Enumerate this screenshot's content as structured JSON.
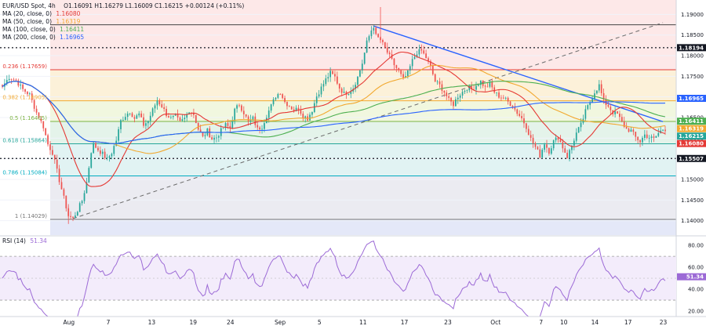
{
  "header": {
    "symbol": "EUR/USD Spot, 4h",
    "ohlc": "O1.16091  H1.16279  L1.16009  C1.16215  +0.00124 (+0.11%)"
  },
  "legend": [
    {
      "label": "MA (20, close, 0)",
      "value": "1.16080",
      "color": "#e53935"
    },
    {
      "label": "MA (50, close, 0)",
      "value": "1.16319",
      "color": "#f2a82f"
    },
    {
      "label": "MA (100, close, 0)",
      "value": "1.16411",
      "color": "#4caf50"
    },
    {
      "label": "MA (200, close, 0)",
      "value": "1.16965",
      "color": "#2962ff"
    }
  ],
  "rsi_legend": {
    "label": "RSI (14)",
    "value": "51.34"
  },
  "colors": {
    "up": "#26a69a",
    "down": "#ef5350",
    "ma20": "#e53935",
    "ma50": "#f2a82f",
    "ma100": "#4caf50",
    "ma200": "#2962ff",
    "rsi": "#9c6ad6",
    "trend": "#2962ff",
    "dashed": "#6b6b6b"
  },
  "chart_data": {
    "type": "candlestick",
    "title": "EUR/USD Spot, 4h",
    "ylim": [
      1.1365,
      1.1935
    ],
    "y_ticks": [
      "1.19000",
      "1.18500",
      "1.18000",
      "1.17500",
      "1.17000",
      "1.16500",
      "1.16000",
      "1.15500",
      "1.15000",
      "1.14500",
      "1.14000"
    ],
    "x_ticks": [
      "Aug",
      "7",
      "13",
      "19",
      "24",
      "Sep",
      "5",
      "11",
      "17",
      "23",
      "Oct",
      "7",
      "10",
      "14",
      "17",
      "23"
    ],
    "fib_levels": [
      {
        "label": "0.236 (1.17659)",
        "value": 1.17659
      },
      {
        "label": "0.382 (1.16905)",
        "value": 1.16905
      },
      {
        "label": "0.5 (1.16405)",
        "value": 1.16405
      },
      {
        "label": "0.618 (1.15864)",
        "value": 1.15864
      },
      {
        "label": "0.786 (1.15084)",
        "value": 1.15084
      },
      {
        "label": "1 (1.14029)",
        "value": 1.14029
      }
    ],
    "horizontal_levels": [
      {
        "label": "1.18194",
        "value": 1.18194,
        "style": "dotted"
      },
      {
        "label": "1.15507",
        "value": 1.15507,
        "style": "dotted"
      }
    ],
    "price_labels": [
      {
        "label": "1.16965",
        "value": 1.16965,
        "series": "MA 200"
      },
      {
        "label": "1.16411",
        "value": 1.16411,
        "series": "MA 100"
      },
      {
        "label": "1.16319",
        "value": 1.16319,
        "series": "MA 50"
      },
      {
        "label": "1.16215",
        "value": 1.16215,
        "series": "Price"
      },
      {
        "label": "1.16080",
        "value": 1.1608,
        "series": "MA 20"
      }
    ],
    "price_path": [
      [
        0,
        1.1725
      ],
      [
        3,
        1.1748
      ],
      [
        6,
        1.174
      ],
      [
        9,
        1.1718
      ],
      [
        12,
        1.1705
      ],
      [
        15,
        1.1662
      ],
      [
        18,
        1.1628
      ],
      [
        20,
        1.1585
      ],
      [
        22,
        1.1565
      ],
      [
        25,
        1.1498
      ],
      [
        27,
        1.1455
      ],
      [
        29,
        1.1412
      ],
      [
        31,
        1.1405
      ],
      [
        33,
        1.1425
      ],
      [
        35,
        1.1448
      ],
      [
        37,
        1.1492
      ],
      [
        39,
        1.1568
      ],
      [
        40,
        1.1585
      ],
      [
        42,
        1.1572
      ],
      [
        44,
        1.1562
      ],
      [
        46,
        1.1548
      ],
      [
        48,
        1.1565
      ],
      [
        50,
        1.1595
      ],
      [
        52,
        1.1642
      ],
      [
        54,
        1.1655
      ],
      [
        56,
        1.1665
      ],
      [
        58,
        1.1648
      ],
      [
        60,
        1.1658
      ],
      [
        62,
        1.1632
      ],
      [
        64,
        1.1642
      ],
      [
        66,
        1.1668
      ],
      [
        68,
        1.1692
      ],
      [
        70,
        1.1678
      ],
      [
        72,
        1.1658
      ],
      [
        74,
        1.1648
      ],
      [
        76,
        1.1652
      ],
      [
        78,
        1.1638
      ],
      [
        80,
        1.1648
      ],
      [
        82,
        1.1668
      ],
      [
        84,
        1.1658
      ],
      [
        86,
        1.1622
      ],
      [
        88,
        1.1602
      ],
      [
        90,
        1.1618
      ],
      [
        92,
        1.1598
      ],
      [
        94,
        1.1602
      ],
      [
        96,
        1.1618
      ],
      [
        98,
        1.1632
      ],
      [
        100,
        1.1625
      ],
      [
        102,
        1.1668
      ],
      [
        104,
        1.1682
      ],
      [
        106,
        1.1662
      ],
      [
        108,
        1.1638
      ],
      [
        110,
        1.1648
      ],
      [
        112,
        1.1622
      ],
      [
        114,
        1.1628
      ],
      [
        116,
        1.1655
      ],
      [
        118,
        1.1678
      ],
      [
        120,
        1.1702
      ],
      [
        122,
        1.1712
      ],
      [
        124,
        1.1688
      ],
      [
        126,
        1.1678
      ],
      [
        128,
        1.1668
      ],
      [
        130,
        1.1672
      ],
      [
        132,
        1.1655
      ],
      [
        134,
        1.1648
      ],
      [
        136,
        1.1668
      ],
      [
        138,
        1.1702
      ],
      [
        140,
        1.1722
      ],
      [
        142,
        1.1742
      ],
      [
        144,
        1.1758
      ],
      [
        146,
        1.1748
      ],
      [
        148,
        1.1722
      ],
      [
        150,
        1.1708
      ],
      [
        152,
        1.1712
      ],
      [
        154,
        1.1722
      ],
      [
        156,
        1.1748
      ],
      [
        158,
        1.1782
      ],
      [
        160,
        1.1832
      ],
      [
        162,
        1.1862
      ],
      [
        163,
        1.1872
      ],
      [
        164,
        1.1848
      ],
      [
        166,
        1.1838
      ],
      [
        168,
        1.1818
      ],
      [
        170,
        1.1798
      ],
      [
        172,
        1.1778
      ],
      [
        174,
        1.1762
      ],
      [
        176,
        1.1742
      ],
      [
        178,
        1.1758
      ],
      [
        180,
        1.1788
      ],
      [
        182,
        1.1808
      ],
      [
        184,
        1.1812
      ],
      [
        186,
        1.1795
      ],
      [
        188,
        1.1772
      ],
      [
        190,
        1.1738
      ],
      [
        192,
        1.1728
      ],
      [
        194,
        1.1712
      ],
      [
        196,
        1.1692
      ],
      [
        198,
        1.1682
      ],
      [
        200,
        1.1702
      ],
      [
        202,
        1.1712
      ],
      [
        204,
        1.1722
      ],
      [
        206,
        1.1718
      ],
      [
        208,
        1.1728
      ],
      [
        210,
        1.1738
      ],
      [
        212,
        1.1722
      ],
      [
        214,
        1.1732
      ],
      [
        216,
        1.1712
      ],
      [
        218,
        1.1702
      ],
      [
        220,
        1.1698
      ],
      [
        222,
        1.1688
      ],
      [
        224,
        1.1678
      ],
      [
        226,
        1.1662
      ],
      [
        228,
        1.1648
      ],
      [
        230,
        1.1628
      ],
      [
        232,
        1.1598
      ],
      [
        234,
        1.1578
      ],
      [
        236,
        1.1558
      ],
      [
        238,
        1.1588
      ],
      [
        240,
        1.1568
      ],
      [
        242,
        1.1592
      ],
      [
        244,
        1.1602
      ],
      [
        246,
        1.1578
      ],
      [
        248,
        1.1555
      ],
      [
        250,
        1.1582
      ],
      [
        252,
        1.1612
      ],
      [
        254,
        1.1632
      ],
      [
        256,
        1.1665
      ],
      [
        258,
        1.1688
      ],
      [
        260,
        1.1712
      ],
      [
        262,
        1.1728
      ],
      [
        264,
        1.1688
      ],
      [
        266,
        1.1678
      ],
      [
        268,
        1.1662
      ],
      [
        270,
        1.1658
      ],
      [
        272,
        1.1638
      ],
      [
        274,
        1.1622
      ],
      [
        276,
        1.1618
      ],
      [
        278,
        1.1602
      ],
      [
        280,
        1.1592
      ],
      [
        282,
        1.1608
      ],
      [
        284,
        1.1602
      ],
      [
        286,
        1.1598
      ],
      [
        288,
        1.1612
      ],
      [
        290,
        1.1622
      ]
    ],
    "rsi": {
      "label": "RSI (14)",
      "ylim": [
        15,
        88
      ],
      "ticks": [
        "80.00",
        "60.00",
        "40.00",
        "20.00"
      ],
      "levels": [
        70,
        30
      ],
      "value": "51.34"
    }
  }
}
